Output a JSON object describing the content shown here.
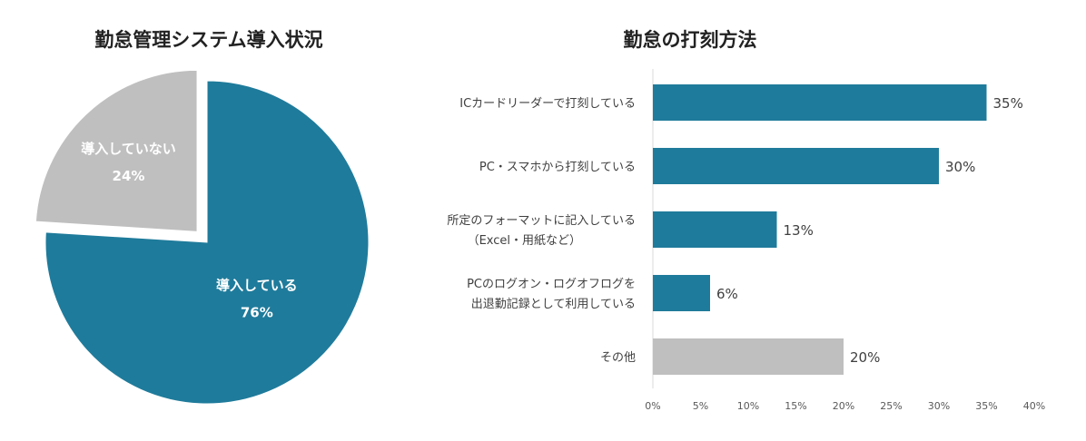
{
  "chart_data": [
    {
      "type": "pie",
      "title": "勤怠管理システム導入状況",
      "slices": [
        {
          "label": "導入している",
          "value": 76,
          "value_label": "76%",
          "color": "#1f7b9b",
          "exploded": false
        },
        {
          "label": "導入していない",
          "value": 24,
          "value_label": "24%",
          "color": "#bfbfbf",
          "exploded": true
        }
      ]
    },
    {
      "type": "bar",
      "orientation": "horizontal",
      "title": "勤怠の打刻方法",
      "categories": [
        [
          "ICカードリーダーで打刻している"
        ],
        [
          "PC・スマホから打刻している"
        ],
        [
          "所定のフォーマットに記入している",
          "（Excel・用紙など）"
        ],
        [
          "PCのログオン・ログオフログを",
          "出退勤記録として利用している"
        ],
        [
          "その他"
        ]
      ],
      "values": [
        35,
        30,
        13,
        6,
        20
      ],
      "value_labels": [
        "35%",
        "30%",
        "13%",
        "6%",
        "20%"
      ],
      "colors": [
        "#1f7b9b",
        "#1f7b9b",
        "#1f7b9b",
        "#1f7b9b",
        "#bfbfbf"
      ],
      "xlim": [
        0,
        40
      ],
      "xticks": [
        "0%",
        "5%",
        "10%",
        "15%",
        "20%",
        "25%",
        "30%",
        "35%",
        "40%"
      ],
      "grid": false
    }
  ]
}
